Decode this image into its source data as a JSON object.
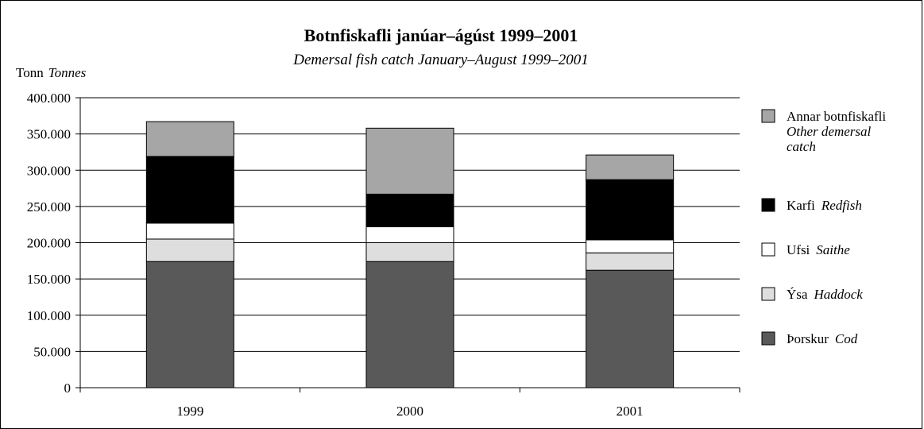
{
  "chart_data": {
    "type": "bar",
    "stacked": true,
    "title": "Botnfiskafli janúar–ágúst 1999–2001",
    "subtitle": "Demersal fish catch January–August 1999–2001",
    "ylabel": "Tonn",
    "ylabel_en": "Tonnes",
    "xlabel": "",
    "categories": [
      "1999",
      "2000",
      "2001"
    ],
    "ylim": [
      0,
      400000
    ],
    "yticks": [
      "0",
      "50.000",
      "100.000",
      "150.000",
      "200.000",
      "250.000",
      "300.000",
      "350.000",
      "400.000"
    ],
    "grid": true,
    "legend_position": "right",
    "series": [
      {
        "name": "Þorskur",
        "name_en": "Cod",
        "color": "#595959",
        "values": [
          174000,
          174000,
          162000
        ]
      },
      {
        "name": "Ýsa",
        "name_en": "Haddock",
        "color": "#dedede",
        "values": [
          31000,
          26000,
          24000
        ]
      },
      {
        "name": "Ufsi",
        "name_en": "Saithe",
        "color": "#ffffff",
        "values": [
          22000,
          22000,
          18000
        ]
      },
      {
        "name": "Karfi",
        "name_en": "Redfish",
        "color": "#000000",
        "values": [
          92000,
          45000,
          83000
        ]
      },
      {
        "name": "Annar botnfiskafli",
        "name_en_lines": [
          "Other demersal",
          "catch"
        ],
        "color": "#a6a6a6",
        "values": [
          48000,
          91000,
          34000
        ]
      }
    ]
  }
}
